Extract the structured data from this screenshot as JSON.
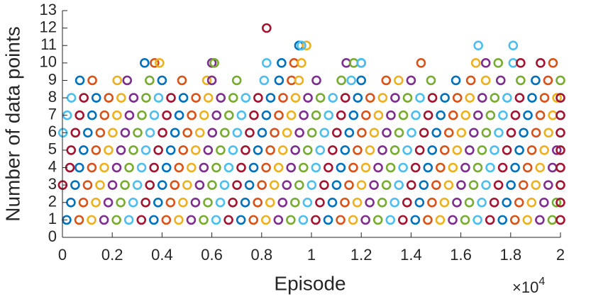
{
  "chart_data": {
    "type": "scatter",
    "x_label": "Episode",
    "y_label": "Number of data points",
    "x_multiplier_base": "×10",
    "x_multiplier_exponent": "4",
    "xlim": [
      0,
      20000
    ],
    "ylim": [
      0,
      13
    ],
    "xticks": [
      0,
      {
        "value": 2000,
        "label": "0.2"
      },
      {
        "value": 4000,
        "label": "0.4"
      },
      {
        "value": 6000,
        "label": "0.6"
      },
      {
        "value": 8000,
        "label": "0.8"
      },
      {
        "value": 10000,
        "label": "1"
      },
      {
        "value": 12000,
        "label": "1.2"
      },
      {
        "value": 14000,
        "label": "1.4"
      },
      {
        "value": 16000,
        "label": "1.6"
      },
      {
        "value": 18000,
        "label": "1.8"
      },
      {
        "value": 20000,
        "label": "2"
      }
    ],
    "yticks": [
      0,
      1,
      2,
      3,
      4,
      5,
      6,
      7,
      8,
      9,
      10,
      11,
      12,
      13
    ],
    "grid": false,
    "series": [
      {
        "color": "#0072bd",
        "x": [
          170,
          3670,
          7170,
          10670,
          14170,
          17670,
          340,
          3840,
          7340,
          10840,
          14340,
          17840,
          510,
          4010,
          7510,
          11010,
          14510,
          18010,
          680,
          4180,
          7680,
          11180,
          14680,
          18180,
          850,
          4350,
          7850,
          11350,
          14850,
          18350,
          1020,
          4520,
          8020,
          11520,
          15020,
          18520,
          1190,
          4690,
          8190,
          11690,
          15190,
          18690,
          1360,
          4860,
          8360,
          11860,
          15360,
          18860,
          700,
          4000,
          8700,
          12000,
          15800,
          19000,
          3300,
          8800,
          12000,
          9500
        ],
        "values": [
          1,
          1,
          1,
          1,
          1,
          1,
          2,
          2,
          2,
          2,
          2,
          2,
          3,
          3,
          3,
          3,
          3,
          3,
          4,
          4,
          4,
          4,
          4,
          4,
          5,
          5,
          5,
          5,
          5,
          5,
          6,
          6,
          6,
          6,
          6,
          6,
          7,
          7,
          7,
          7,
          7,
          7,
          8,
          8,
          8,
          8,
          8,
          8,
          9,
          9,
          9,
          9,
          9,
          9,
          10,
          10,
          10,
          11
        ]
      },
      {
        "color": "#d95319",
        "x": [
          670,
          4170,
          7670,
          11170,
          14670,
          18170,
          840,
          4340,
          7840,
          11340,
          14840,
          18340,
          1010,
          4510,
          8010,
          11510,
          15010,
          18510,
          1180,
          4680,
          8180,
          11680,
          15180,
          18680,
          1350,
          4850,
          8350,
          11850,
          15350,
          18850,
          1520,
          5020,
          8520,
          12020,
          15520,
          19020,
          1690,
          5190,
          8690,
          12190,
          15690,
          19190,
          1860,
          5360,
          8860,
          12360,
          15860,
          19360,
          1200,
          4800,
          9200,
          13000,
          16400,
          19500,
          3700,
          9300,
          14400,
          19700
        ],
        "values": [
          1,
          1,
          1,
          1,
          1,
          1,
          2,
          2,
          2,
          2,
          2,
          2,
          3,
          3,
          3,
          3,
          3,
          3,
          4,
          4,
          4,
          4,
          4,
          4,
          5,
          5,
          5,
          5,
          5,
          5,
          6,
          6,
          6,
          6,
          6,
          6,
          7,
          7,
          7,
          7,
          7,
          7,
          8,
          8,
          8,
          8,
          8,
          8,
          9,
          9,
          9,
          9,
          9,
          9,
          10,
          10,
          10,
          10
        ]
      },
      {
        "color": "#edb120",
        "x": [
          1170,
          4670,
          8170,
          11670,
          15170,
          18670,
          1340,
          4840,
          8340,
          11840,
          15340,
          18840,
          1510,
          5010,
          8510,
          12010,
          15510,
          19010,
          1680,
          5180,
          8680,
          12180,
          15680,
          19180,
          1850,
          5350,
          8850,
          12350,
          15850,
          19350,
          2020,
          5520,
          9020,
          12520,
          16020,
          19520,
          2190,
          5690,
          9190,
          12690,
          16190,
          19690,
          2360,
          5860,
          9360,
          12860,
          16360,
          19860,
          2200,
          5800,
          9500,
          13500,
          17000,
          3900,
          9600,
          16600,
          9800
        ],
        "values": [
          1,
          1,
          1,
          1,
          1,
          1,
          2,
          2,
          2,
          2,
          2,
          2,
          3,
          3,
          3,
          3,
          3,
          3,
          4,
          4,
          4,
          4,
          4,
          4,
          5,
          5,
          5,
          5,
          5,
          5,
          6,
          6,
          6,
          6,
          6,
          6,
          7,
          7,
          7,
          7,
          7,
          7,
          8,
          8,
          8,
          8,
          8,
          8,
          9,
          9,
          9,
          9,
          9,
          10,
          10,
          10,
          11
        ]
      },
      {
        "color": "#7e2f8e",
        "x": [
          1670,
          5170,
          8670,
          12170,
          15670,
          19170,
          1840,
          5340,
          8840,
          12340,
          15840,
          19340,
          2010,
          5510,
          9010,
          12510,
          16010,
          19510,
          2180,
          5680,
          9180,
          12680,
          16180,
          19680,
          2350,
          5850,
          9350,
          12850,
          16350,
          19850,
          2520,
          6020,
          9520,
          13020,
          16520,
          2690,
          6190,
          9690,
          13190,
          16690,
          2860,
          6360,
          9860,
          13360,
          16860,
          2600,
          6000,
          10200,
          14000,
          17600,
          6000,
          11400,
          17000
        ],
        "values": [
          1,
          1,
          1,
          1,
          1,
          1,
          2,
          2,
          2,
          2,
          2,
          2,
          3,
          3,
          3,
          3,
          3,
          3,
          4,
          4,
          4,
          4,
          4,
          4,
          5,
          5,
          5,
          5,
          5,
          5,
          6,
          6,
          6,
          6,
          6,
          7,
          7,
          7,
          7,
          7,
          8,
          8,
          8,
          8,
          8,
          9,
          9,
          9,
          9,
          9,
          10,
          10,
          10
        ]
      },
      {
        "color": "#77ac30",
        "x": [
          2170,
          5670,
          9170,
          12670,
          16170,
          19670,
          2340,
          5840,
          9340,
          12840,
          16340,
          19840,
          2510,
          6010,
          9510,
          13010,
          16510,
          2680,
          6180,
          9680,
          13180,
          16680,
          2850,
          6350,
          9850,
          13350,
          16850,
          3020,
          6520,
          10020,
          13520,
          17020,
          3190,
          6690,
          10190,
          13690,
          17190,
          3360,
          6860,
          10360,
          13860,
          17360,
          3500,
          7000,
          11200,
          14800,
          18400,
          20000,
          6100,
          11700,
          17500
        ],
        "values": [
          1,
          1,
          1,
          1,
          1,
          1,
          2,
          2,
          2,
          2,
          2,
          2,
          3,
          3,
          3,
          3,
          3,
          4,
          4,
          4,
          4,
          4,
          5,
          5,
          5,
          5,
          5,
          6,
          6,
          6,
          6,
          6,
          7,
          7,
          7,
          7,
          7,
          8,
          8,
          8,
          8,
          8,
          9,
          9,
          9,
          9,
          9,
          9,
          10,
          10,
          10
        ]
      },
      {
        "color": "#4dbeee",
        "x": [
          2670,
          6170,
          9670,
          13170,
          16670,
          2840,
          6340,
          9840,
          13340,
          16840,
          3010,
          6510,
          10010,
          13510,
          17010,
          3180,
          6680,
          10180,
          13680,
          17180,
          3350,
          6850,
          10350,
          13850,
          17350,
          20,
          3520,
          7020,
          10520,
          14020,
          17520,
          190,
          3690,
          7190,
          10690,
          14190,
          17690,
          360,
          3860,
          7360,
          10860,
          14360,
          17860,
          8100,
          11600,
          8200,
          12000,
          18100,
          9600,
          16700,
          18100
        ],
        "values": [
          1,
          1,
          1,
          1,
          1,
          2,
          2,
          2,
          2,
          2,
          3,
          3,
          3,
          3,
          3,
          4,
          4,
          4,
          4,
          4,
          5,
          5,
          5,
          5,
          5,
          6,
          6,
          6,
          6,
          6,
          6,
          7,
          7,
          7,
          7,
          7,
          7,
          8,
          8,
          8,
          8,
          8,
          8,
          9,
          9,
          10,
          10,
          10,
          11,
          11,
          11
        ]
      },
      {
        "color": "#a2142f",
        "x": [
          3170,
          6670,
          10170,
          13670,
          17170,
          3340,
          6840,
          10340,
          13840,
          17340,
          10,
          3510,
          7010,
          10510,
          14010,
          17510,
          300,
          3680,
          7180,
          10680,
          14180,
          17680,
          350,
          3850,
          7350,
          10850,
          14350,
          17850,
          520,
          4020,
          7520,
          11020,
          14520,
          18020,
          690,
          4190,
          7690,
          11190,
          14690,
          18190,
          860,
          4360,
          7860,
          11360,
          14860,
          18360,
          20000,
          20000,
          20000,
          20000,
          20000,
          20000,
          20000,
          20000,
          18400,
          19200,
          8200
        ],
        "values": [
          1,
          1,
          1,
          1,
          1,
          2,
          2,
          2,
          2,
          2,
          3,
          3,
          3,
          3,
          3,
          3,
          4,
          4,
          4,
          4,
          4,
          4,
          5,
          5,
          5,
          5,
          5,
          5,
          6,
          6,
          6,
          6,
          6,
          6,
          7,
          7,
          7,
          7,
          7,
          7,
          8,
          8,
          8,
          8,
          8,
          8,
          1,
          2,
          3,
          4,
          5,
          6,
          7,
          8,
          10,
          10,
          12
        ]
      }
    ]
  }
}
